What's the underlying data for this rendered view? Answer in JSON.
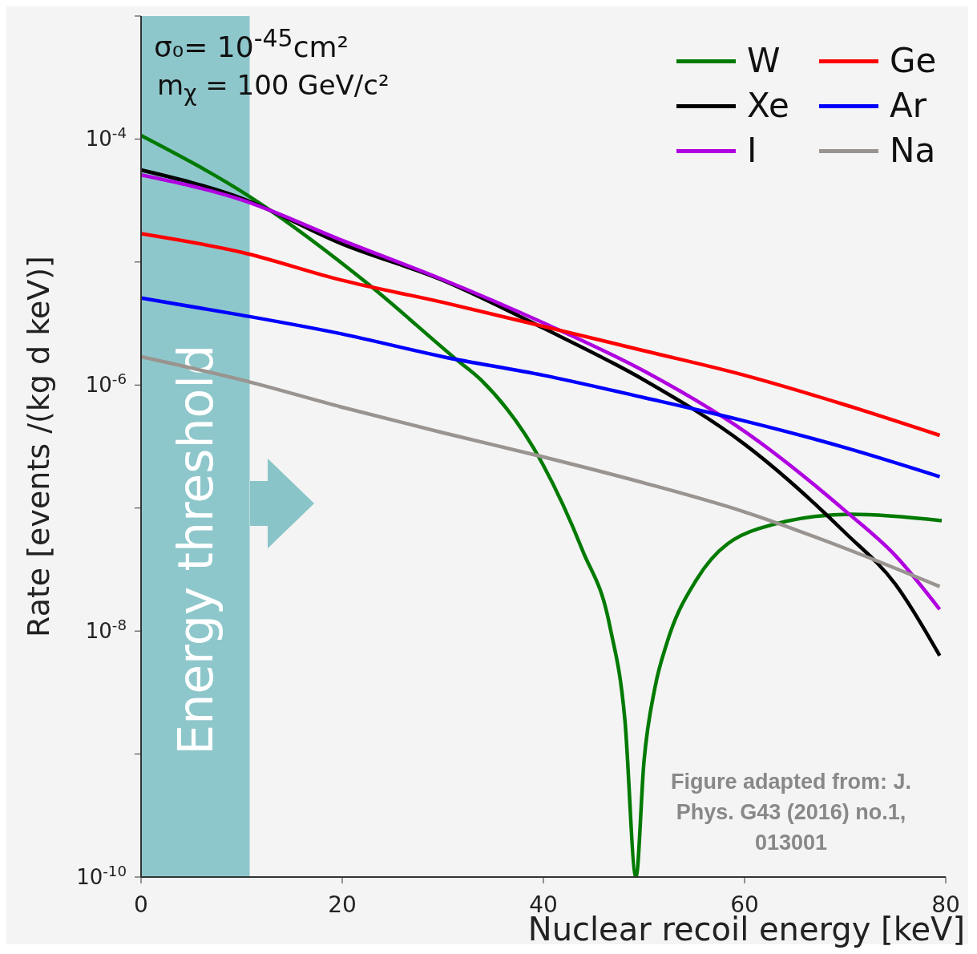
{
  "chart_data": {
    "type": "line",
    "xlabel": "Nuclear recoil energy [keV]",
    "ylabel": "Rate [events /(kg d keV)]",
    "log": "y",
    "xlim": [
      0,
      80
    ],
    "xticks": [
      0,
      20,
      40,
      60,
      80
    ],
    "ylim": [
      1e-10,
      0.001
    ],
    "yticks": [
      {
        "value": 1e-10,
        "label": "10$^{-10}$"
      },
      {
        "value": 1e-09,
        "label": null
      },
      {
        "value": 1e-08,
        "label": "10$^{-8}$"
      },
      {
        "value": 1e-07,
        "label": null
      },
      {
        "value": 1e-06,
        "label": "10$^{-6}$"
      },
      {
        "value": 1e-05,
        "label": null
      },
      {
        "value": 0.0001,
        "label": "10$^{-4}$"
      },
      {
        "value": 0.001,
        "label": null
      }
    ],
    "legend": "top right",
    "marker": "none",
    "line_style": "solid",
    "series": [
      {
        "name": "W",
        "color": "#007a00",
        "x": [
          0,
          10.8,
          22.6,
          31.4,
          33.8,
          39.9,
          43.9,
          46.6,
          48.1,
          49.2,
          50.0,
          51.1,
          52.3,
          55.2,
          61.4,
          70.6,
          79.6
        ],
        "values": [
          0.000107,
          3.4e-05,
          6.6e-06,
          1.6e-06,
          1.1e-06,
          2.3e-07,
          4.5e-08,
          1.1e-08,
          1.9e-09,
          1e-10,
          8.7e-10,
          3.5e-09,
          8.1e-09,
          2.6e-08,
          6.8e-08,
          8.9e-08,
          7.9e-08
        ]
      },
      {
        "name": "Xe",
        "color": "#000000",
        "x": [
          0,
          10,
          20,
          30,
          40,
          50,
          60,
          70,
          75,
          79.4
        ],
        "values": [
          5.6e-05,
          3.3e-05,
          1.4e-05,
          7.1e-06,
          2.9e-06,
          1.1e-06,
          3.3e-07,
          6.3e-08,
          2.4e-08,
          6.3e-09
        ]
      },
      {
        "name": "I",
        "color": "#b000e0",
        "x": [
          0,
          10,
          20,
          30,
          40,
          50,
          60,
          70,
          75,
          79.4
        ],
        "values": [
          5.1e-05,
          3.2e-05,
          1.5e-05,
          7.2e-06,
          3.2e-06,
          1.3e-06,
          4.2e-07,
          9.5e-08,
          4.1e-08,
          1.5e-08
        ]
      },
      {
        "name": "Ge",
        "color": "#ff0000",
        "x": [
          0,
          10,
          20,
          30,
          40,
          50,
          60,
          70,
          79.4
        ],
        "values": [
          1.7e-05,
          1.2e-05,
          7.1e-06,
          4.7e-06,
          3e-06,
          1.9e-06,
          1.2e-06,
          6.9e-07,
          3.9e-07
        ]
      },
      {
        "name": "Ar",
        "color": "#0000ff",
        "x": [
          0,
          10,
          20,
          30,
          40,
          50,
          60,
          70,
          79.4
        ],
        "values": [
          5.1e-06,
          3.7e-06,
          2.6e-06,
          1.7e-06,
          1.2e-06,
          7.9e-07,
          5.1e-07,
          3.1e-07,
          1.8e-07
        ]
      },
      {
        "name": "Na",
        "color": "#9a9490",
        "x": [
          0,
          10,
          20,
          30,
          40,
          50,
          60,
          70,
          79.4
        ],
        "values": [
          1.7e-06,
          1.1e-06,
          6.6e-07,
          4.1e-07,
          2.6e-07,
          1.6e-07,
          9.3e-08,
          4.7e-08,
          2.3e-08
        ]
      }
    ],
    "bands": [
      {
        "axis": "x",
        "from": 0,
        "to": 10.8,
        "label": "Energy threshold",
        "color": "#88c4c8"
      }
    ],
    "annotations": [
      "σ₀= 10$^{-45}$cm²",
      "m$_{χ}$ = 100 GeV/c²",
      "Figure adapted from: J. Phys. G43 (2016) no.1, 013001"
    ]
  }
}
